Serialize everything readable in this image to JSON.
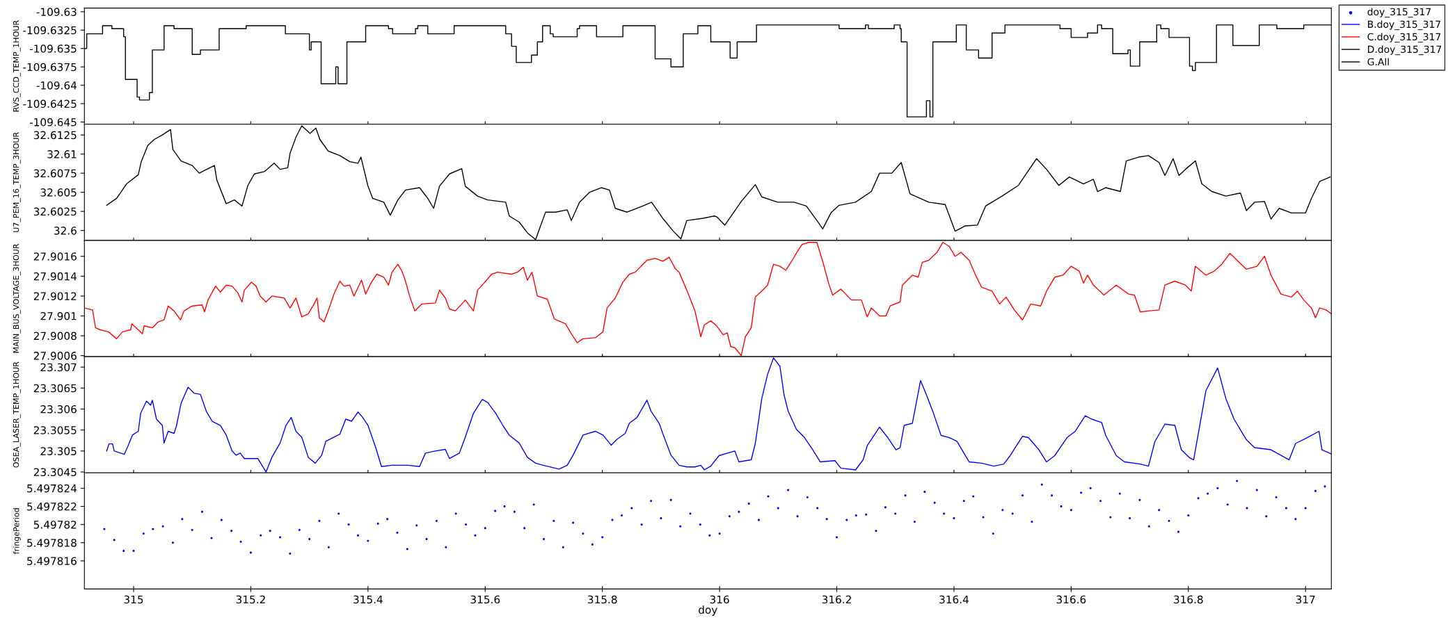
{
  "chart_data": [
    {
      "type": "step",
      "ylabel": "RVS_CCD_TEMP_1HOUR",
      "xlim": [
        314.916,
        317.044
      ],
      "xticks": [
        315,
        315.2,
        315.4,
        315.6,
        315.8,
        316,
        316.2,
        316.4,
        316.6,
        316.8,
        317
      ],
      "ylim": [
        -109.6453,
        -109.6295
      ],
      "yticks": [
        -109.645,
        -109.6425,
        -109.64,
        -109.6375,
        -109.635,
        -109.6325,
        -109.63
      ],
      "tick_labels": "y",
      "legend": "top right",
      "marker": "none",
      "series": [
        {
          "name": "G.All",
          "color": "#000000",
          "x": [
            314.916,
            314.92,
            314.947,
            314.963,
            314.983,
            314.986,
            315.006,
            315.01,
            315.027,
            315.032,
            315.052,
            315.069,
            315.1,
            315.114,
            315.146,
            315.192,
            315.259,
            315.3,
            315.303,
            315.32,
            315.345,
            315.349,
            315.364,
            315.396,
            315.435,
            315.442,
            315.481,
            315.485,
            315.502,
            315.547,
            315.635,
            315.645,
            315.653,
            315.679,
            315.689,
            315.698,
            315.711,
            315.716,
            315.757,
            315.761,
            315.79,
            315.835,
            315.89,
            315.917,
            315.938,
            315.963,
            315.985,
            316.018,
            316.03,
            316.063,
            316.204,
            316.249,
            316.254,
            316.298,
            316.308,
            316.31,
            316.32,
            316.353,
            316.359,
            316.364,
            316.404,
            316.421,
            316.442,
            316.465,
            316.487,
            316.581,
            316.6,
            316.628,
            316.645,
            316.652,
            316.671,
            316.697,
            316.701,
            316.717,
            316.746,
            316.753,
            316.767,
            316.802,
            316.807,
            316.812,
            316.848,
            316.876,
            316.921,
            316.951,
            316.997,
            317.044
          ],
          "values": [
            -109.635,
            -109.633,
            -109.6319,
            -109.6323,
            -109.6334,
            -109.6392,
            -109.6416,
            -109.642,
            -109.641,
            -109.6352,
            -109.6319,
            -109.6323,
            -109.6358,
            -109.6352,
            -109.6323,
            -109.6319,
            -109.633,
            -109.6352,
            -109.6341,
            -109.6398,
            -109.6375,
            -109.6398,
            -109.6341,
            -109.6319,
            -109.6323,
            -109.633,
            -109.6323,
            -109.6319,
            -109.633,
            -109.6319,
            -109.633,
            -109.6347,
            -109.6369,
            -109.6359,
            -109.6341,
            -109.6319,
            -109.633,
            -109.6334,
            -109.6323,
            -109.6319,
            -109.6334,
            -109.6319,
            -109.6364,
            -109.6375,
            -109.633,
            -109.6319,
            -109.6341,
            -109.6363,
            -109.6341,
            -109.6318,
            -109.6323,
            -109.6318,
            -109.6323,
            -109.6318,
            -109.6323,
            -109.6341,
            -109.6443,
            -109.6421,
            -109.6443,
            -109.6341,
            -109.6318,
            -109.6352,
            -109.6363,
            -109.6329,
            -109.6318,
            -109.6323,
            -109.6335,
            -109.6329,
            -109.6318,
            -109.6323,
            -109.6357,
            -109.6352,
            -109.6374,
            -109.6341,
            -109.6318,
            -109.6323,
            -109.6335,
            -109.6374,
            -109.638,
            -109.6369,
            -109.6318,
            -109.6346,
            -109.6318,
            -109.6323,
            -109.6318,
            -109.6318
          ]
        }
      ]
    },
    {
      "type": "line",
      "ylabel": "U7_PEM_16_TEMP_3HOUR",
      "xlim": [
        314.916,
        317.044
      ],
      "xticks": [
        315,
        315.2,
        315.4,
        315.6,
        315.8,
        316,
        316.2,
        316.4,
        316.6,
        316.8,
        317
      ],
      "ylim": [
        32.5987,
        32.6139
      ],
      "yticks": [
        32.6,
        32.6025,
        32.605,
        32.6075,
        32.61,
        32.6125
      ],
      "tick_labels": "y",
      "legend": "top right",
      "marker": "none",
      "series": [
        {
          "name": "D.doy_315_317",
          "color": "#000000",
          "x": [
            314.954,
            314.971,
            314.988,
            315.008,
            315.013,
            315.024,
            315.035,
            315.049,
            315.063,
            315.067,
            315.081,
            315.1,
            315.112,
            315.127,
            315.138,
            315.142,
            315.158,
            315.172,
            315.185,
            315.195,
            315.206,
            315.223,
            315.24,
            315.25,
            315.263,
            315.267,
            315.277,
            315.287,
            315.301,
            315.311,
            315.318,
            315.332,
            315.352,
            315.369,
            315.383,
            315.388,
            315.4,
            315.408,
            315.427,
            315.438,
            315.451,
            315.464,
            315.488,
            315.502,
            315.512,
            315.522,
            315.539,
            315.56,
            315.566,
            315.587,
            315.604,
            315.635,
            315.641,
            315.658,
            315.672,
            315.686,
            315.703,
            315.72,
            315.74,
            315.747,
            315.761,
            315.778,
            315.798,
            315.812,
            315.822,
            315.842,
            315.869,
            315.884,
            315.903,
            315.92,
            315.934,
            315.944,
            315.972,
            315.991,
            315.995,
            316.009,
            316.037,
            316.061,
            316.072,
            316.099,
            316.127,
            316.148,
            316.169,
            316.176,
            316.19,
            316.204,
            316.232,
            316.259,
            316.273,
            316.294,
            316.31,
            316.325,
            316.357,
            316.385,
            316.402,
            316.419,
            316.44,
            316.454,
            316.482,
            316.51,
            316.524,
            316.541,
            316.558,
            316.579,
            316.597,
            316.621,
            316.638,
            316.645,
            316.659,
            316.684,
            316.694,
            316.715,
            316.732,
            316.75,
            316.76,
            316.774,
            316.784,
            316.795,
            316.812,
            316.823,
            316.84,
            316.864,
            316.889,
            316.899,
            316.913,
            316.93,
            316.941,
            316.955,
            316.976,
            317.0,
            317.01,
            317.024,
            317.042
          ],
          "values": [
            32.6033,
            32.6042,
            32.6061,
            32.6073,
            32.609,
            32.6111,
            32.6119,
            32.6125,
            32.6132,
            32.6106,
            32.6091,
            32.6085,
            32.6075,
            32.6081,
            32.6085,
            32.6066,
            32.6035,
            32.604,
            32.6032,
            32.6059,
            32.6074,
            32.6077,
            32.6088,
            32.608,
            32.6082,
            32.6101,
            32.6122,
            32.6137,
            32.6127,
            32.6134,
            32.6119,
            32.6104,
            32.6098,
            32.609,
            32.6088,
            32.6096,
            32.6058,
            32.6042,
            32.6037,
            32.602,
            32.604,
            32.6053,
            32.6056,
            32.6042,
            32.6029,
            32.6058,
            32.6074,
            32.6081,
            32.6058,
            32.6045,
            32.604,
            32.6037,
            32.6019,
            32.6011,
            32.5997,
            32.5988,
            32.6024,
            32.6024,
            32.6027,
            32.6013,
            32.6037,
            32.605,
            32.6056,
            32.6053,
            32.6029,
            32.6024,
            32.6032,
            32.6037,
            32.6016,
            32.6,
            32.5989,
            32.6013,
            32.6016,
            32.6019,
            32.6018,
            32.6007,
            32.6038,
            32.606,
            32.6044,
            32.6037,
            32.6037,
            32.6032,
            32.601,
            32.6002,
            32.6023,
            32.6033,
            32.6037,
            32.6051,
            32.6075,
            32.6075,
            32.6089,
            32.6048,
            32.6037,
            32.6034,
            32.5999,
            32.6006,
            32.6007,
            32.6032,
            32.6045,
            32.6059,
            32.6075,
            32.6094,
            32.608,
            32.6059,
            32.607,
            32.6061,
            32.6067,
            32.6051,
            32.6056,
            32.6051,
            32.6091,
            32.6096,
            32.6098,
            32.6089,
            32.6072,
            32.6094,
            32.6072,
            32.608,
            32.6091,
            32.6061,
            32.6051,
            32.6045,
            32.6049,
            32.6026,
            32.6037,
            32.6038,
            32.6015,
            32.6029,
            32.6023,
            32.6023,
            32.6042,
            32.6064,
            32.607
          ]
        }
      ]
    },
    {
      "type": "line",
      "ylabel": "MAIN_BUS_VOLTAGE_3HOUR",
      "xlim": [
        314.916,
        317.044
      ],
      "xticks": [
        315,
        315.2,
        315.4,
        315.6,
        315.8,
        316,
        316.2,
        316.4,
        316.6,
        316.8,
        317
      ],
      "ylim": [
        27.90059,
        27.90176
      ],
      "yticks": [
        27.9006,
        27.9008,
        27.901,
        27.9012,
        27.9014,
        27.9016
      ],
      "tick_labels": "y",
      "legend": "top right",
      "marker": "none",
      "series": [
        {
          "name": "C.doy_315_317",
          "color": "#ff0000",
          "x": [
            314.916,
            314.93,
            314.935,
            314.943,
            314.957,
            314.971,
            314.981,
            314.995,
            314.997,
            315.008,
            315.015,
            315.018,
            315.032,
            315.042,
            315.052,
            315.059,
            315.069,
            315.08,
            315.086,
            315.1,
            315.117,
            315.121,
            315.127,
            315.14,
            315.148,
            315.158,
            315.168,
            315.178,
            315.185,
            315.189,
            315.201,
            315.209,
            315.216,
            315.226,
            315.236,
            315.257,
            315.267,
            315.277,
            315.287,
            315.298,
            315.308,
            315.313,
            315.317,
            315.325,
            315.335,
            315.342,
            315.352,
            315.359,
            315.369,
            315.376,
            315.389,
            315.396,
            315.406,
            315.415,
            315.427,
            315.435,
            315.441,
            315.451,
            315.458,
            315.464,
            315.471,
            315.48,
            315.492,
            315.515,
            315.522,
            315.532,
            315.539,
            315.549,
            315.56,
            315.566,
            315.58,
            315.587,
            315.601,
            315.611,
            315.621,
            315.645,
            315.655,
            315.665,
            315.672,
            315.68,
            315.689,
            315.706,
            315.718,
            315.737,
            315.747,
            315.757,
            315.767,
            315.788,
            315.801,
            315.808,
            315.822,
            315.835,
            315.846,
            315.856,
            315.866,
            315.876,
            315.89,
            315.903,
            315.914,
            315.924,
            315.931,
            315.944,
            315.958,
            315.968,
            315.974,
            315.985,
            315.995,
            316.006,
            316.013,
            316.019,
            316.026,
            316.037,
            316.044,
            316.054,
            316.061,
            316.072,
            316.082,
            316.092,
            316.103,
            316.113,
            316.124,
            316.134,
            316.141,
            316.152,
            316.166,
            316.176,
            316.186,
            316.193,
            316.207,
            316.225,
            316.242,
            316.252,
            316.259,
            316.273,
            316.284,
            316.291,
            316.308,
            316.312,
            316.329,
            316.339,
            316.346,
            316.357,
            316.371,
            316.381,
            316.392,
            316.402,
            316.412,
            316.426,
            316.437,
            316.447,
            316.465,
            316.478,
            316.489,
            316.503,
            316.517,
            316.531,
            316.548,
            316.558,
            316.572,
            316.586,
            316.6,
            316.614,
            316.621,
            316.628,
            316.638,
            316.656,
            316.677,
            316.698,
            316.708,
            316.718,
            316.732,
            316.75,
            316.76,
            316.777,
            316.795,
            316.805,
            316.812,
            316.83,
            316.844,
            316.857,
            316.871,
            316.885,
            316.899,
            316.917,
            316.93,
            316.941,
            316.958,
            316.976,
            316.986,
            316.997,
            317.01,
            317.017,
            317.024,
            317.035,
            317.044
          ],
          "values": [
            27.90108,
            27.90106,
            27.90088,
            27.90086,
            27.90084,
            27.90077,
            27.90084,
            27.90086,
            27.90092,
            27.90086,
            27.90082,
            27.9009,
            27.90088,
            27.90094,
            27.90096,
            27.9011,
            27.90105,
            27.90096,
            27.90105,
            27.9011,
            27.90111,
            27.90104,
            27.90116,
            27.9013,
            27.90124,
            27.90131,
            27.9013,
            27.90123,
            27.90114,
            27.90126,
            27.90134,
            27.9013,
            27.9012,
            27.90114,
            27.9012,
            27.90118,
            27.90108,
            27.90118,
            27.90099,
            27.90102,
            27.90112,
            27.90118,
            27.90098,
            27.90094,
            27.9011,
            27.90122,
            27.90135,
            27.9013,
            27.90131,
            27.9012,
            27.90136,
            27.90122,
            27.90134,
            27.90142,
            27.90139,
            27.90131,
            27.90144,
            27.90152,
            27.90145,
            27.90135,
            27.9012,
            27.90105,
            27.90112,
            27.90113,
            27.90126,
            27.90118,
            27.90107,
            27.90105,
            27.90112,
            27.90116,
            27.90105,
            27.90126,
            27.90135,
            27.90142,
            27.90144,
            27.90142,
            27.90144,
            27.90149,
            27.90136,
            27.90144,
            27.9012,
            27.90117,
            27.90097,
            27.90092,
            27.90082,
            27.90073,
            27.90077,
            27.90078,
            27.90084,
            27.90108,
            27.90118,
            27.90134,
            27.90142,
            27.90144,
            27.9015,
            27.90156,
            27.90158,
            27.90155,
            27.90159,
            27.90148,
            27.90144,
            27.90126,
            27.90105,
            27.90079,
            27.90091,
            27.90095,
            27.9009,
            27.90081,
            27.90083,
            27.90069,
            27.90068,
            27.9006,
            27.90079,
            27.90088,
            27.90119,
            27.90125,
            27.90131,
            27.90152,
            27.9015,
            27.90146,
            27.90156,
            27.90166,
            27.90172,
            27.90174,
            27.90174,
            27.90155,
            27.90133,
            27.90121,
            27.90127,
            27.90116,
            27.90116,
            27.90099,
            27.90108,
            27.901,
            27.901,
            27.9011,
            27.90114,
            27.90131,
            27.90141,
            27.90139,
            27.90154,
            27.90156,
            27.90164,
            27.90174,
            27.9017,
            27.9016,
            27.90164,
            27.90156,
            27.90141,
            27.90129,
            27.90125,
            27.90112,
            27.90119,
            27.90106,
            27.90096,
            27.90112,
            27.9011,
            27.90125,
            27.90139,
            27.90141,
            27.9015,
            27.90145,
            27.90133,
            27.90141,
            27.90131,
            27.90121,
            27.90131,
            27.90122,
            27.90121,
            27.90104,
            27.90105,
            27.90106,
            27.90131,
            27.90135,
            27.90131,
            27.90125,
            27.9015,
            27.90141,
            27.90145,
            27.90152,
            27.90163,
            27.90155,
            27.90147,
            27.9015,
            27.9016,
            27.90141,
            27.90122,
            27.90119,
            27.90125,
            27.90116,
            27.90108,
            27.90098,
            27.90108,
            27.90106,
            27.90102
          ]
        }
      ]
    },
    {
      "type": "line",
      "ylabel": "OSEA_LASER_TEMP_1HOUR",
      "xlim": [
        314.916,
        317.044
      ],
      "xticks": [
        315,
        315.2,
        315.4,
        315.6,
        315.8,
        316,
        316.2,
        316.4,
        316.6,
        316.8,
        317
      ],
      "ylim": [
        23.30448,
        23.30725
      ],
      "yticks": [
        23.3045,
        23.305,
        23.3055,
        23.306,
        23.3065,
        23.307
      ],
      "tick_labels": "y",
      "legend": "top right",
      "marker": "none",
      "series": [
        {
          "name": "B.doy_315_317",
          "color": "#0000ff",
          "x": [
            314.954,
            314.958,
            314.964,
            314.967,
            314.984,
            314.991,
            314.998,
            315.008,
            315.012,
            315.022,
            315.029,
            315.032,
            315.039,
            315.049,
            315.052,
            315.059,
            315.069,
            315.073,
            315.081,
            315.093,
            315.103,
            315.114,
            315.124,
            315.134,
            315.148,
            315.158,
            315.168,
            315.175,
            315.182,
            315.189,
            315.212,
            315.226,
            315.236,
            315.25,
            315.26,
            315.269,
            315.277,
            315.287,
            315.298,
            315.31,
            315.321,
            315.328,
            315.342,
            315.352,
            315.362,
            315.372,
            315.383,
            315.391,
            315.4,
            315.413,
            315.423,
            315.441,
            315.468,
            315.488,
            315.498,
            315.515,
            315.532,
            315.539,
            315.556,
            315.566,
            315.58,
            315.595,
            315.604,
            315.618,
            315.631,
            315.641,
            315.658,
            315.672,
            315.686,
            315.699,
            315.726,
            315.74,
            315.75,
            315.767,
            315.788,
            315.801,
            315.815,
            315.825,
            315.839,
            315.846,
            315.859,
            315.876,
            315.883,
            315.897,
            315.903,
            315.917,
            315.931,
            315.944,
            315.958,
            315.968,
            315.974,
            315.985,
            315.999,
            316.026,
            316.033,
            316.054,
            316.061,
            316.072,
            316.082,
            316.092,
            316.103,
            316.11,
            316.117,
            316.131,
            316.145,
            316.159,
            316.172,
            316.197,
            316.207,
            316.232,
            316.245,
            316.252,
            316.273,
            316.287,
            316.301,
            316.308,
            316.315,
            316.329,
            316.343,
            316.353,
            316.364,
            316.378,
            316.392,
            316.405,
            316.426,
            316.447,
            316.468,
            316.485,
            316.496,
            316.517,
            316.527,
            316.545,
            316.558,
            316.572,
            316.593,
            316.607,
            316.624,
            316.635,
            316.652,
            316.659,
            316.677,
            316.691,
            316.718,
            316.732,
            316.743,
            316.76,
            316.777,
            316.788,
            316.802,
            316.809,
            316.819,
            316.83,
            316.85,
            316.864,
            316.878,
            316.899,
            316.913,
            316.941,
            316.972,
            316.983,
            317.003,
            317.023,
            317.028,
            317.044
          ],
          "values": [
            23.305,
            23.30517,
            23.30517,
            23.305,
            23.30492,
            23.30514,
            23.30538,
            23.30547,
            23.3059,
            23.30619,
            23.30609,
            23.30621,
            23.30576,
            23.30561,
            23.30519,
            23.30547,
            23.30542,
            23.30559,
            23.30614,
            23.30652,
            23.30638,
            23.30635,
            23.30595,
            23.30571,
            23.30561,
            23.30538,
            23.305,
            23.3049,
            23.30495,
            23.30482,
            23.30482,
            23.3045,
            23.30485,
            23.30519,
            23.30561,
            23.3058,
            23.30547,
            23.30533,
            23.30485,
            23.30471,
            23.3049,
            23.30523,
            23.30533,
            23.3054,
            23.30576,
            23.30571,
            23.30593,
            23.3058,
            23.30561,
            23.30509,
            23.30463,
            23.30466,
            23.30466,
            23.30463,
            23.30495,
            23.305,
            23.30504,
            23.30482,
            23.30495,
            23.30533,
            23.3059,
            23.30623,
            23.30616,
            23.3059,
            23.30559,
            23.30538,
            23.30519,
            23.30485,
            23.30471,
            23.30466,
            23.30457,
            23.30466,
            23.3049,
            23.30538,
            23.30547,
            23.30538,
            23.30514,
            23.30528,
            23.30542,
            23.30566,
            23.3058,
            23.30621,
            23.30595,
            23.30566,
            23.30542,
            23.3049,
            23.30466,
            23.30462,
            23.30462,
            23.30466,
            23.30455,
            23.30464,
            23.30489,
            23.305,
            23.30474,
            23.30479,
            23.30518,
            23.30625,
            23.30683,
            23.30722,
            23.30702,
            23.30634,
            23.30595,
            23.30552,
            23.30532,
            23.30503,
            23.30474,
            23.30477,
            23.30459,
            23.30455,
            23.30479,
            23.30513,
            23.30557,
            23.30532,
            23.30503,
            23.30508,
            23.30561,
            23.30566,
            23.30668,
            23.30634,
            23.30594,
            23.30537,
            23.30532,
            23.30523,
            23.30474,
            23.30471,
            23.30464,
            23.30469,
            23.30489,
            23.30535,
            23.30532,
            23.30503,
            23.30474,
            23.30489,
            23.30532,
            23.30547,
            23.30584,
            23.30576,
            23.30568,
            23.30537,
            23.30489,
            23.30474,
            23.30469,
            23.30464,
            23.30523,
            23.30564,
            23.30561,
            23.30503,
            23.30484,
            23.30479,
            23.30557,
            23.30644,
            23.30698,
            23.30625,
            23.30576,
            23.30527,
            23.30508,
            23.30503,
            23.30479,
            23.30518,
            23.30532,
            23.30547,
            23.30503,
            23.30493
          ]
        }
      ]
    },
    {
      "type": "scatter",
      "ylabel": "fringePeriod",
      "xlabel": "doy",
      "xlim": [
        314.916,
        317.044
      ],
      "xticks": [
        315,
        315.2,
        315.4,
        315.6,
        315.8,
        316,
        316.2,
        316.4,
        316.6,
        316.8,
        317
      ],
      "ylim": [
        5.4978129,
        5.4978257
      ],
      "yticks": [
        5.497816,
        5.497818,
        5.49782,
        5.497822,
        5.497824
      ],
      "legend": "top right",
      "marker": "circle",
      "series": [
        {
          "name": "doy_315_317",
          "color": "#0000ff",
          "x": [
            314.95,
            314.967,
            314.983,
            315.0,
            315.017,
            315.033,
            315.05,
            315.067,
            315.083,
            315.1,
            315.117,
            315.133,
            315.15,
            315.167,
            315.183,
            315.2,
            315.217,
            315.233,
            315.25,
            315.267,
            315.283,
            315.3,
            315.317,
            315.333,
            315.35,
            315.367,
            315.383,
            315.4,
            315.417,
            315.433,
            315.45,
            315.467,
            315.483,
            315.5,
            315.517,
            315.533,
            315.55,
            315.567,
            315.583,
            315.6,
            315.617,
            315.633,
            315.65,
            315.667,
            315.683,
            315.7,
            315.717,
            315.733,
            315.75,
            315.767,
            315.783,
            315.8,
            315.817,
            315.833,
            315.85,
            315.867,
            315.883,
            315.9,
            315.917,
            315.933,
            315.95,
            315.967,
            315.983,
            316.0,
            316.017,
            316.033,
            316.05,
            316.067,
            316.083,
            316.1,
            316.117,
            316.133,
            316.15,
            316.167,
            316.183,
            316.2,
            316.217,
            316.233,
            316.25,
            316.267,
            316.283,
            316.3,
            316.317,
            316.333,
            316.35,
            316.367,
            316.383,
            316.4,
            316.417,
            316.433,
            316.45,
            316.467,
            316.483,
            316.5,
            316.517,
            316.533,
            316.55,
            316.567,
            316.583,
            316.6,
            316.617,
            316.633,
            316.65,
            316.667,
            316.683,
            316.7,
            316.717,
            316.733,
            316.75,
            316.767,
            316.783,
            316.8,
            316.817,
            316.833,
            316.85,
            316.867,
            316.883,
            316.9,
            316.917,
            316.933,
            316.95,
            316.967,
            316.983,
            317.0,
            317.017,
            317.033
          ],
          "values": [
            5.4978195,
            5.4978183,
            5.4978171,
            5.4978171,
            5.497819,
            5.4978195,
            5.4978198,
            5.497818,
            5.4978206,
            5.4978194,
            5.4978214,
            5.4978185,
            5.4978205,
            5.4978193,
            5.4978181,
            5.4978169,
            5.4978188,
            5.4978193,
            5.4978186,
            5.4978168,
            5.4978194,
            5.4978184,
            5.4978204,
            5.4978175,
            5.4978212,
            5.49782,
            5.4978188,
            5.4978182,
            5.4978201,
            5.4978206,
            5.4978191,
            5.4978173,
            5.4978199,
            5.4978184,
            5.4978204,
            5.4978175,
            5.4978212,
            5.49782,
            5.4978188,
            5.4978196,
            5.4978215,
            5.497822,
            5.4978214,
            5.4978196,
            5.4978222,
            5.4978184,
            5.4978204,
            5.4978175,
            5.4978202,
            5.497819,
            5.4978178,
            5.4978186,
            5.4978205,
            5.497821,
            5.4978218,
            5.49782,
            5.4978226,
            5.4978207,
            5.4978227,
            5.4978198,
            5.4978212,
            5.49782,
            5.4978188,
            5.497819,
            5.4978209,
            5.4978214,
            5.4978223,
            5.4978205,
            5.4978231,
            5.4978218,
            5.4978238,
            5.4978209,
            5.497823,
            5.4978218,
            5.4978206,
            5.4978186,
            5.4978205,
            5.497821,
            5.4978211,
            5.4978193,
            5.4978219,
            5.4978212,
            5.4978232,
            5.4978203,
            5.4978236,
            5.4978224,
            5.4978212,
            5.4978207,
            5.4978226,
            5.4978231,
            5.4978208,
            5.497819,
            5.4978216,
            5.4978212,
            5.4978232,
            5.4978203,
            5.4978244,
            5.4978232,
            5.497822,
            5.4978216,
            5.4978235,
            5.497824,
            5.4978226,
            5.4978208,
            5.4978234,
            5.4978207,
            5.4978227,
            5.4978198,
            5.4978216,
            5.4978204,
            5.4978192,
            5.497821,
            5.4978229,
            5.4978234,
            5.497824,
            5.4978222,
            5.4978248,
            5.4978218,
            5.4978238,
            5.4978209,
            5.497823,
            5.4978218,
            5.4978206,
            5.4978218,
            5.4978237,
            5.4978242
          ]
        }
      ]
    }
  ]
}
